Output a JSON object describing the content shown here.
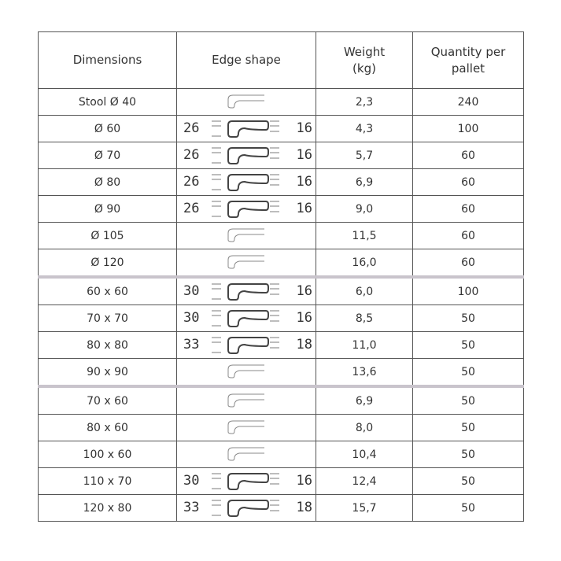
{
  "headers": [
    "Dimensions",
    "Edge shape",
    "Weight\n(kg)",
    "Quantity per\npallet"
  ],
  "rows": [
    {
      "dim": "Stool Ø 40",
      "edge": null,
      "weight": "2,3",
      "qty": "240"
    },
    {
      "dim": "Ø 60",
      "edge": {
        "left": "26",
        "right": "16"
      },
      "weight": "4,3",
      "qty": "100"
    },
    {
      "dim": "Ø 70",
      "edge": {
        "left": "26",
        "right": "16"
      },
      "weight": "5,7",
      "qty": "60"
    },
    {
      "dim": "Ø 80",
      "edge": {
        "left": "26",
        "right": "16"
      },
      "weight": "6,9",
      "qty": "60"
    },
    {
      "dim": "Ø 90",
      "edge": {
        "left": "26",
        "right": "16"
      },
      "weight": "9,0",
      "qty": "60"
    },
    {
      "dim": "Ø 105",
      "edge": null,
      "weight": "11,5",
      "qty": "60"
    },
    {
      "dim": "Ø 120",
      "edge": null,
      "weight": "16,0",
      "qty": "60"
    },
    {
      "dim": "60 x 60",
      "edge": {
        "left": "30",
        "right": "16"
      },
      "weight": "6,0",
      "qty": "100",
      "sep": true
    },
    {
      "dim": "70 x 70",
      "edge": {
        "left": "30",
        "right": "16"
      },
      "weight": "8,5",
      "qty": "50"
    },
    {
      "dim": "80 x 80",
      "edge": {
        "left": "33",
        "right": "18"
      },
      "weight": "11,0",
      "qty": "50"
    },
    {
      "dim": "90 x 90",
      "edge": null,
      "weight": "13,6",
      "qty": "50"
    },
    {
      "dim": "70 x 60",
      "edge": null,
      "weight": "6,9",
      "qty": "50",
      "sep": true
    },
    {
      "dim": "80 x 60",
      "edge": null,
      "weight": "8,0",
      "qty": "50"
    },
    {
      "dim": "100 x 60",
      "edge": null,
      "weight": "10,4",
      "qty": "50"
    },
    {
      "dim": "110 x 70",
      "edge": {
        "left": "30",
        "right": "16"
      },
      "weight": "12,4",
      "qty": "50"
    },
    {
      "dim": "120 x 80",
      "edge": {
        "left": "33",
        "right": "18"
      },
      "weight": "15,7",
      "qty": "50"
    }
  ],
  "colors": {
    "separator": "#c9c4cc",
    "border": "#555555"
  }
}
